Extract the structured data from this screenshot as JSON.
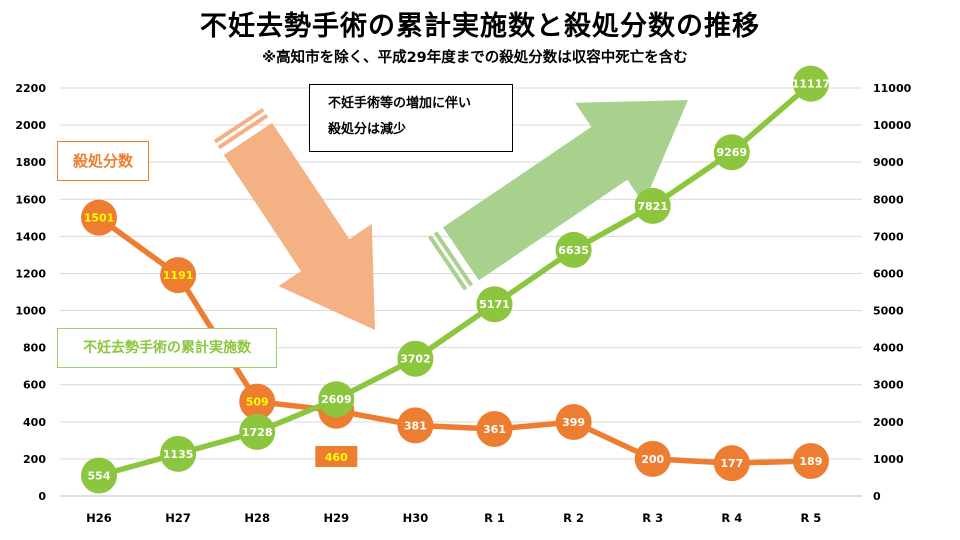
{
  "title": "不妊去勢手術の累計実施数と殺処分数の推移",
  "subtitle": "※高知市を除く、平成29年度までの殺処分数は収容中死亡を含む",
  "note": [
    "不妊手術等の増加に伴い",
    "殺処分は減少"
  ],
  "chart_data": {
    "type": "line",
    "categories": [
      "H26",
      "H27",
      "H28",
      "H29",
      "H30",
      "R 1",
      "R 2",
      "R 3",
      "R 4",
      "R 5"
    ],
    "series": [
      {
        "name": "殺処分数",
        "axis": "left",
        "color": "#ed7d31",
        "values": [
          1501,
          1191,
          509,
          460,
          381,
          361,
          399,
          200,
          177,
          189
        ]
      },
      {
        "name": "不妊去勢手術の累計実施数",
        "axis": "right",
        "color": "#8cc63f",
        "values": [
          554,
          1135,
          1728,
          2609,
          3702,
          5171,
          6635,
          7821,
          9269,
          11117
        ]
      }
    ],
    "y_left": {
      "ylim": [
        0,
        2200
      ],
      "ticks": [
        0,
        200,
        400,
        600,
        800,
        1000,
        1200,
        1400,
        1600,
        1800,
        2000,
        2200
      ]
    },
    "y_right": {
      "ylim": [
        0,
        11000
      ],
      "ticks": [
        0,
        1000,
        2000,
        3000,
        4000,
        5000,
        6000,
        7000,
        8000,
        9000,
        10000,
        11000
      ]
    },
    "grid": true,
    "label_colors": {
      "orange_first_three": "#ffff00",
      "default": "#ffffff"
    },
    "arrow_colors": {
      "down": "#f4b183",
      "up": "#a9d18e"
    }
  }
}
